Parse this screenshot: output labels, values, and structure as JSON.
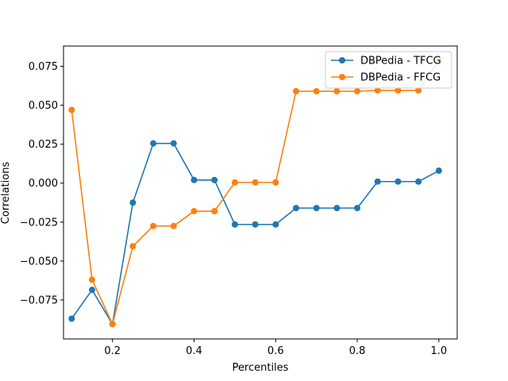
{
  "chart_data": {
    "type": "line",
    "title": "",
    "xlabel": "Percentiles",
    "ylabel": "Correlations",
    "xlim": [
      0.08,
      1.045
    ],
    "ylim": [
      -0.1,
      0.088
    ],
    "xticks": [
      0.2,
      0.4,
      0.6,
      0.8,
      1.0
    ],
    "xtick_labels": [
      "0.2",
      "0.4",
      "0.6",
      "0.8",
      "1.0"
    ],
    "yticks": [
      -0.075,
      -0.05,
      -0.025,
      0.0,
      0.025,
      0.05,
      0.075
    ],
    "ytick_labels": [
      "−0.075",
      "−0.050",
      "−0.025",
      "0.000",
      "0.025",
      "0.050",
      "0.075"
    ],
    "grid": false,
    "legend_position": "top-right",
    "x": [
      0.1,
      0.15,
      0.2,
      0.25,
      0.3,
      0.35,
      0.4,
      0.45,
      0.5,
      0.55,
      0.6,
      0.65,
      0.7,
      0.75,
      0.8,
      0.85,
      0.9,
      0.95,
      1.0
    ],
    "series": [
      {
        "name": "DBPedia - TFCG",
        "color": "#1f77b4",
        "values": [
          -0.087,
          -0.0685,
          -0.0905,
          -0.0125,
          0.0255,
          0.0255,
          0.002,
          0.002,
          -0.0265,
          -0.0265,
          -0.0265,
          -0.016,
          -0.016,
          -0.016,
          -0.016,
          0.001,
          0.001,
          0.001,
          0.008
        ]
      },
      {
        "name": "DBPedia - FFCG",
        "color": "#ff7f0e",
        "values": [
          0.047,
          -0.062,
          -0.0905,
          -0.0405,
          -0.0275,
          -0.0275,
          -0.018,
          -0.018,
          0.0005,
          0.0005,
          0.0005,
          0.059,
          0.059,
          0.059,
          0.059,
          0.0595,
          0.0595,
          0.0595,
          0.079
        ]
      }
    ]
  }
}
